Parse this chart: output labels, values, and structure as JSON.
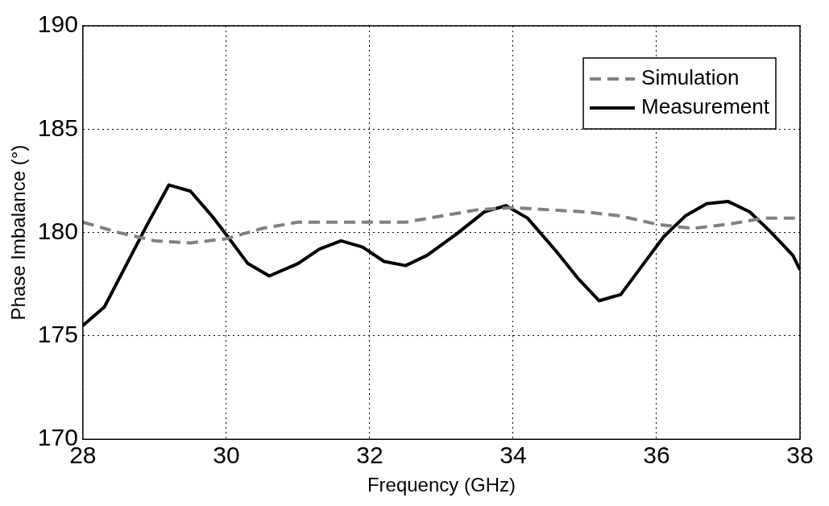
{
  "chart_data": {
    "type": "line",
    "xlabel": "Frequency (GHz)",
    "ylabel": "Phase Imbalance (°)",
    "xlim": [
      28,
      38
    ],
    "xticks": [
      28,
      30,
      32,
      34,
      36,
      38
    ],
    "ylim": [
      170,
      190
    ],
    "yticks": [
      170,
      175,
      180,
      185,
      190
    ],
    "grid": true,
    "legend": "top right",
    "marker": "none",
    "series": [
      {
        "name": "Simulation",
        "color": "#808080",
        "line_style": "dashed",
        "x": [
          28,
          28.5,
          29,
          29.5,
          30,
          30.5,
          31,
          32,
          32.5,
          33,
          33.5,
          34,
          34.5,
          35,
          35.5,
          36,
          36.5,
          37,
          37.5,
          38
        ],
        "values": [
          180.5,
          180.0,
          179.6,
          179.5,
          179.7,
          180.2,
          180.5,
          180.5,
          180.5,
          180.8,
          181.1,
          181.2,
          181.1,
          181.0,
          180.8,
          180.4,
          180.2,
          180.4,
          180.7,
          180.7
        ]
      },
      {
        "name": "Measurement",
        "color": "#000000",
        "line_style": "solid",
        "x": [
          28,
          28.3,
          28.6,
          28.9,
          29.2,
          29.5,
          29.8,
          30,
          30.3,
          30.6,
          31,
          31.3,
          31.6,
          31.9,
          32.2,
          32.5,
          32.8,
          33.2,
          33.6,
          33.9,
          34.2,
          34.6,
          34.9,
          35.2,
          35.5,
          35.8,
          36.1,
          36.4,
          36.7,
          37,
          37.3,
          37.6,
          37.9,
          38
        ],
        "values": [
          175.5,
          176.4,
          178.4,
          180.4,
          182.3,
          182.0,
          180.8,
          179.9,
          178.5,
          177.9,
          178.5,
          179.2,
          179.6,
          179.3,
          178.6,
          178.4,
          178.9,
          179.9,
          181.0,
          181.3,
          180.7,
          179.1,
          177.8,
          176.7,
          177.0,
          178.4,
          179.8,
          180.8,
          181.4,
          181.5,
          181.0,
          180.0,
          178.9,
          178.2
        ]
      }
    ]
  }
}
